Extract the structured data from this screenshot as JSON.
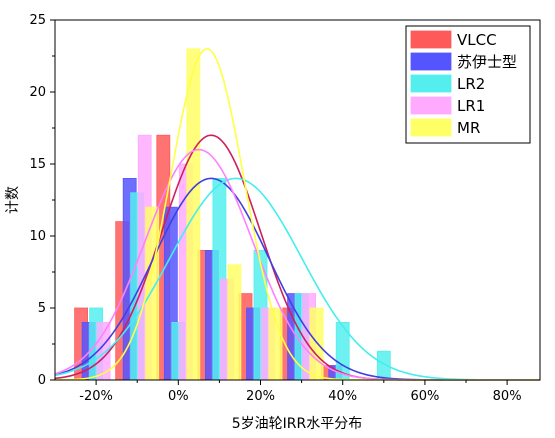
{
  "chart_data": {
    "type": "bar",
    "title": "",
    "xlabel": "5岁油轮IRR水平分布",
    "ylabel": "计数",
    "xlim": [
      -0.3,
      0.88
    ],
    "ylim": [
      0,
      25
    ],
    "x_ticks": [
      -0.2,
      0,
      0.2,
      0.4,
      0.6,
      0.8
    ],
    "x_tick_labels": [
      "-20%",
      "0%",
      "20%",
      "40%",
      "60%",
      "80%"
    ],
    "y_ticks": [
      0,
      5,
      10,
      15,
      20,
      25
    ],
    "y_tick_labels": [
      "0",
      "5",
      "10",
      "15",
      "20",
      "25"
    ],
    "grid": false,
    "legend_position": "top-right",
    "series": [
      {
        "name": "VLCC",
        "color": "#ff5a5a",
        "curve_color": "#cc2060",
        "x": [
          -0.2,
          -0.1,
          0,
          0.1,
          0.2,
          0.3,
          0.4
        ],
        "values": [
          5,
          11,
          17,
          9,
          6,
          5,
          1
        ],
        "curve": {
          "mean": 0.08,
          "sd": 0.12,
          "peak": 17
        }
      },
      {
        "name": "苏伊士型",
        "color": "#5555ff",
        "curve_color": "#4040e0",
        "x": [
          -0.2,
          -0.1,
          0,
          0.1,
          0.2,
          0.3,
          0.4
        ],
        "values": [
          4,
          14,
          12,
          9,
          5,
          6,
          1
        ],
        "curve": {
          "mean": 0.08,
          "sd": 0.14,
          "peak": 14
        }
      },
      {
        "name": "LR2",
        "color": "#55eeee",
        "curve_color": "#44eeee",
        "x": [
          -0.2,
          -0.1,
          0,
          0.1,
          0.2,
          0.3,
          0.4,
          0.5
        ],
        "values": [
          5,
          13,
          4,
          14,
          9,
          6,
          4,
          2
        ],
        "curve": {
          "mean": 0.14,
          "sd": 0.16,
          "peak": 14
        }
      },
      {
        "name": "LR1",
        "color": "#ffaaff",
        "curve_color": "#ff80ff",
        "x": [
          -0.2,
          -0.1,
          0,
          0.1,
          0.2,
          0.3
        ],
        "values": [
          4,
          17,
          15,
          7,
          5,
          6
        ],
        "curve": {
          "mean": 0.05,
          "sd": 0.13,
          "peak": 16
        }
      },
      {
        "name": "MR",
        "color": "#ffff66",
        "curve_color": "#ffff44",
        "x": [
          -0.2,
          -0.1,
          0,
          0.1,
          0.2,
          0.3
        ],
        "values": [
          0,
          12,
          23,
          8,
          5,
          5
        ],
        "curve": {
          "mean": 0.07,
          "sd": 0.09,
          "peak": 23
        }
      }
    ]
  }
}
